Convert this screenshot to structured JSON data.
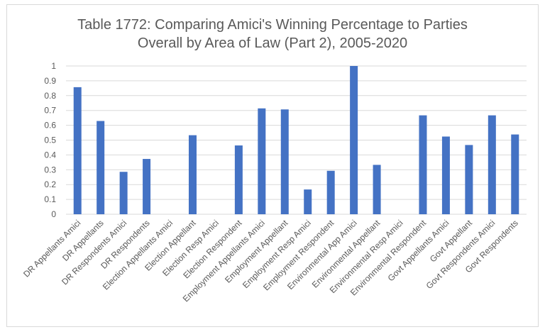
{
  "chart_data": {
    "type": "bar",
    "title": "Table 1772: Comparing Amici's Winning Percentage to Parties Overall by Area of Law (Part 2), 2005-2020",
    "title_lines": [
      "Table 1772: Comparing Amici's Winning Percentage to Parties",
      "Overall by Area of Law (Part 2), 2005-2020"
    ],
    "xlabel": "",
    "ylabel": "",
    "ylim": [
      0,
      1
    ],
    "yticks": [
      "0",
      "0.1",
      "0.2",
      "0.3",
      "0.4",
      "0.5",
      "0.6",
      "0.7",
      "0.8",
      "0.9",
      "1"
    ],
    "grid": true,
    "bar_color": "#4472C4",
    "categories": [
      "DR Appellants Amici",
      "DR Appellants",
      "DR Respondents Amici",
      "DR Respondents",
      "Election Appellants Amici",
      "Election Appellant",
      "Election Resp Amici",
      "Election Respondent",
      "Employment Appellants Amici",
      "Employment Appellant",
      "Employment Resp Amici",
      "Employment Respondent",
      "Environmental App Amici",
      "Environmental Appellant",
      "Environmental Resp Amici",
      "Environmental Respondent",
      "Govt Appellants Amici",
      "Govt Appellant",
      "Govt Respondents Amici",
      "Govt Respondents"
    ],
    "values": [
      0.857,
      0.629,
      0.286,
      0.373,
      0,
      0.533,
      0,
      0.464,
      0.714,
      0.707,
      0.167,
      0.293,
      1.0,
      0.333,
      0,
      0.667,
      0.524,
      0.467,
      0.667,
      0.538
    ]
  }
}
